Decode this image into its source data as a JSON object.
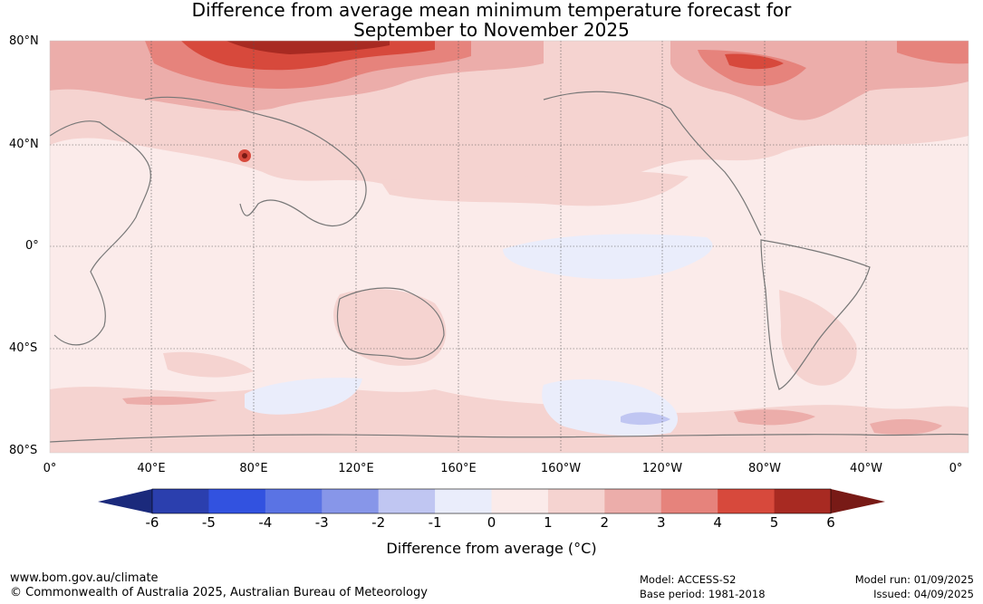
{
  "title": {
    "line1": "Difference from average mean minimum temperature forecast for",
    "line2": "September to November 2025"
  },
  "map": {
    "lat_labels": [
      "80°N",
      "40°N",
      "0°",
      "40°S",
      "80°S"
    ],
    "lon_labels": [
      "0°",
      "40°E",
      "80°E",
      "120°E",
      "160°E",
      "160°W",
      "120°W",
      "80°W",
      "40°W",
      "0°"
    ],
    "colors": {
      "ocean_base": "#fbebea",
      "light_warm": "#f5d3d0",
      "mid_warm": "#ecadaa",
      "strong_warm": "#e6837c",
      "hot": "#d7493c",
      "very_hot": "#a82a22",
      "extreme_hot": "#7a1a14",
      "light_cool": "#eaedfb",
      "mid_cool": "#c0c6f2",
      "coastline": "#777777"
    }
  },
  "colorbar": {
    "ticks": [
      "-6",
      "-5",
      "-4",
      "-3",
      "-2",
      "-1",
      "0",
      "1",
      "2",
      "3",
      "4",
      "5",
      "6"
    ],
    "low_extend_color": "#1b2a7c",
    "high_extend_color": "#781a16",
    "bins": [
      "#2b3fae",
      "#3252e0",
      "#5a73e4",
      "#8796e9",
      "#c0c6f2",
      "#eaedfb",
      "#fbebea",
      "#f5d3d0",
      "#ecadaa",
      "#e6837c",
      "#d7493c",
      "#a82a22"
    ],
    "label": "Difference from average (°C)"
  },
  "footer": {
    "website": "www.bom.gov.au/climate",
    "copyright": "© Commonwealth of Australia 2025, Australian Bureau of Meteorology",
    "model": "Model: ACCESS-S2",
    "base_period": "Base period: 1981-2018",
    "model_run": "Model run: 01/09/2025",
    "issued": "Issued: 04/09/2025"
  }
}
